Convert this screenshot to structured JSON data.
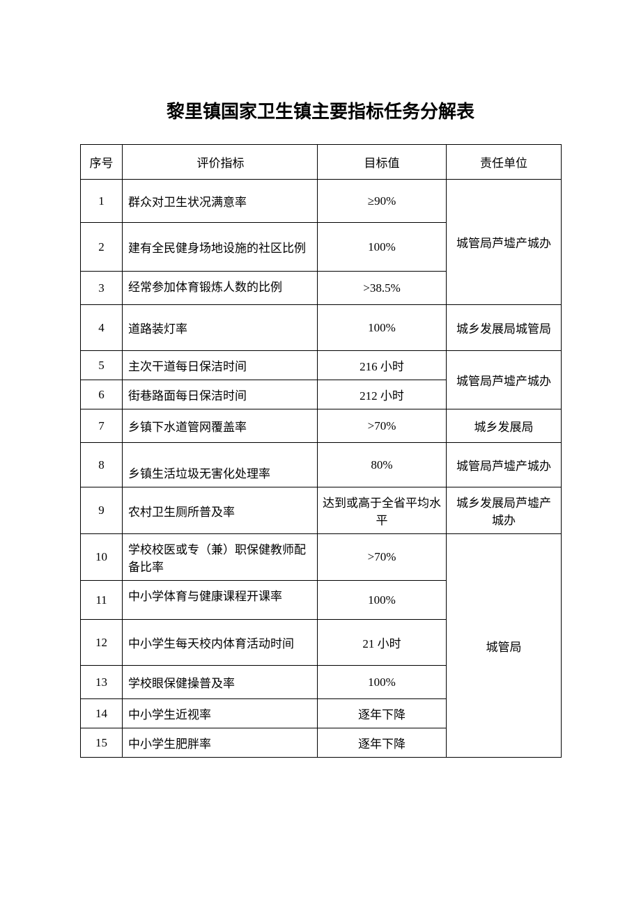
{
  "title": "黎里镇国家卫生镇主要指标任务分解表",
  "headers": {
    "num": "序号",
    "indicator": "评价指标",
    "target": "目标值",
    "unit": "责任单位"
  },
  "rows": {
    "r1": {
      "num": "1",
      "indicator": "群众对卫生状况满意率",
      "target": "≥90%"
    },
    "r2": {
      "num": "2",
      "indicator": "建有全民健身场地设施的社区比例",
      "target": "100%"
    },
    "r3": {
      "num": "3",
      "indicator": "经常参加体育锻炼人数的比例",
      "target": ">38.5%"
    },
    "r4": {
      "num": "4",
      "indicator": "道路装灯率",
      "target": "100%"
    },
    "r5": {
      "num": "5",
      "indicator": "主次干道每日保洁时间",
      "target": "216 小时"
    },
    "r6": {
      "num": "6",
      "indicator": "街巷路面每日保洁时间",
      "target": "212 小时"
    },
    "r7": {
      "num": "7",
      "indicator": "乡镇下水道管网覆盖率",
      "target": ">70%"
    },
    "r8": {
      "num": "8",
      "indicator": "乡镇生活垃圾无害化处理率",
      "target": "80%"
    },
    "r9": {
      "num": "9",
      "indicator": "农村卫生厕所普及率",
      "target": "达到或高于全省平均水平"
    },
    "r10": {
      "num": "10",
      "indicator": "学校校医或专（兼）职保健教师配备比率",
      "target": ">70%"
    },
    "r11": {
      "num": "11",
      "indicator": "中小学体育与健康课程开课率",
      "target": "100%"
    },
    "r12": {
      "num": "12",
      "indicator": "中小学生每天校内体育活动时间",
      "target": "21 小时"
    },
    "r13": {
      "num": "13",
      "indicator": "学校眼保健操普及率",
      "target": "100%"
    },
    "r14": {
      "num": "14",
      "indicator": "中小学生近视率",
      "target": "逐年下降"
    },
    "r15": {
      "num": "15",
      "indicator": "中小学生肥胖率",
      "target": "逐年下降"
    }
  },
  "units": {
    "u1": "城管局芦墟产城办",
    "u2": "城乡发展局城管局",
    "u3": "城管局芦墟产城办",
    "u4": "城乡发展局",
    "u5": "城管局芦墟产城办",
    "u6": "城乡发展局芦墟产城办",
    "u7": "城管局"
  }
}
